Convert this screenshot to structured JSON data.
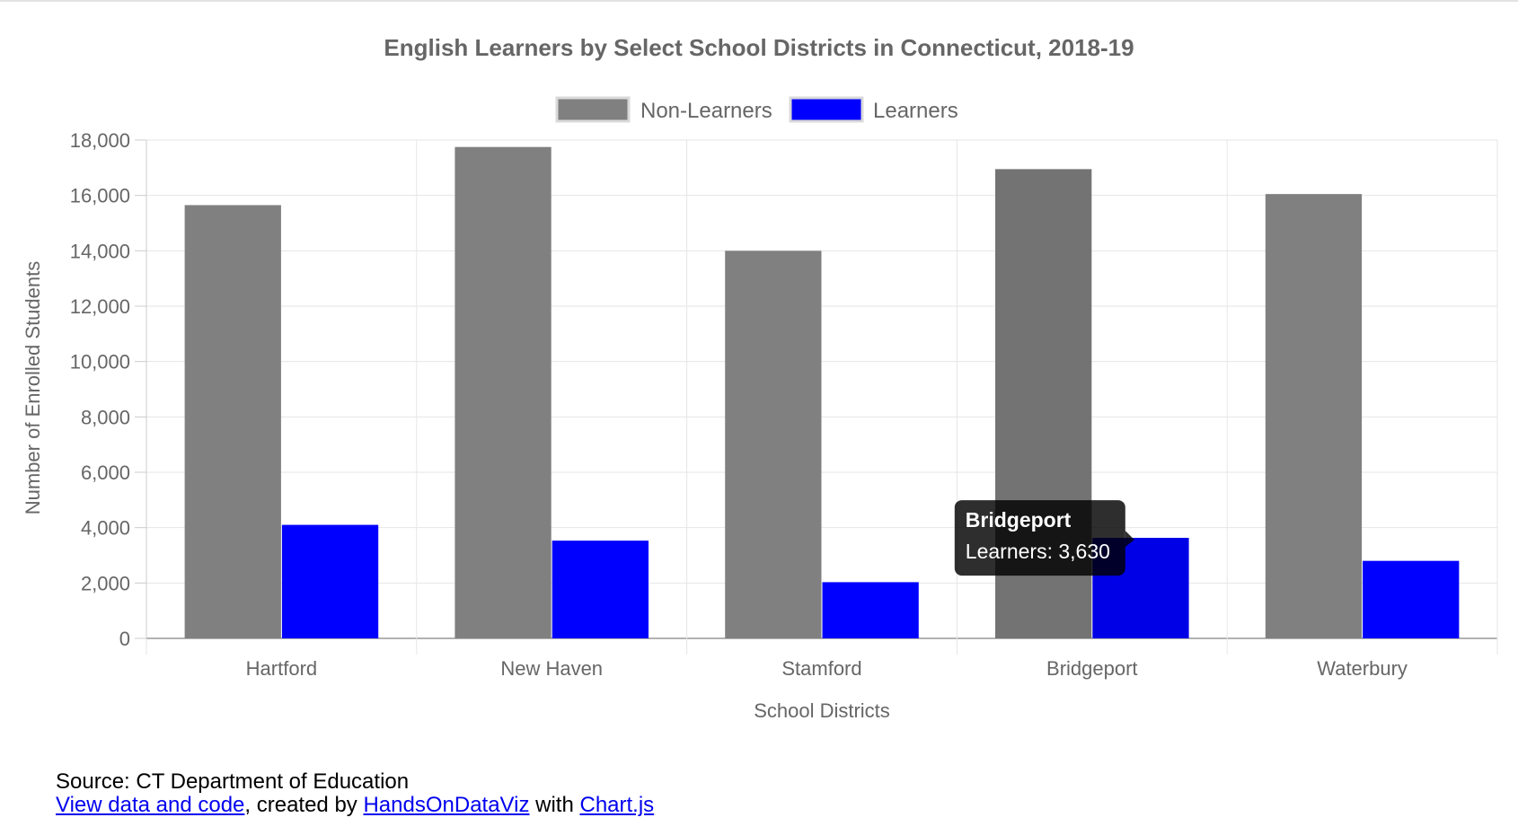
{
  "chart_data": {
    "type": "bar",
    "title": "English Learners by Select School Districts in Connecticut, 2018-19",
    "xlabel": "School Districts",
    "ylabel": "Number of Enrolled Students",
    "categories": [
      "Hartford",
      "New Haven",
      "Stamford",
      "Bridgeport",
      "Waterbury"
    ],
    "series": [
      {
        "name": "Non-Learners",
        "color": "#808080",
        "hover_color": "#737373",
        "values": [
          15650,
          17750,
          14000,
          16950,
          16050
        ]
      },
      {
        "name": "Learners",
        "color": "#0000ff",
        "hover_color": "#0000e6",
        "values": [
          4100,
          3530,
          2030,
          3630,
          2800
        ]
      }
    ],
    "ylim": [
      0,
      18000
    ],
    "yticks": [
      0,
      2000,
      4000,
      6000,
      8000,
      10000,
      12000,
      14000,
      16000,
      18000
    ],
    "ytick_labels": [
      "0",
      "2,000",
      "4,000",
      "6,000",
      "8,000",
      "10,000",
      "12,000",
      "14,000",
      "16,000",
      "18,000"
    ],
    "grid": true,
    "legend_position": "top-center",
    "tooltip": {
      "category": "Bridgeport",
      "title": "Bridgeport",
      "body": "Learners: 3,630"
    }
  },
  "footer": {
    "source": "Source: CT Department of Education",
    "link_data": "View data and code",
    "text_created": ", created by ",
    "link_author": "HandsOnDataViz",
    "text_with": " with ",
    "link_lib": "Chart.js"
  }
}
